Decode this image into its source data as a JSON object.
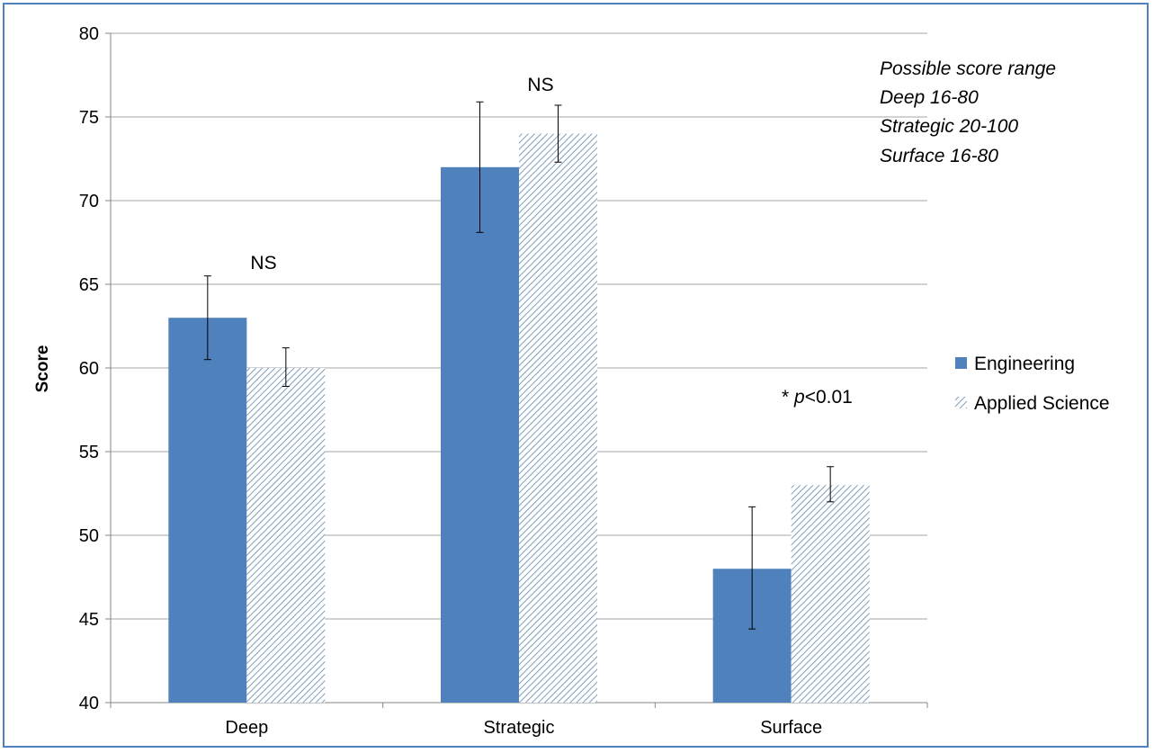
{
  "chart_data": {
    "type": "bar",
    "categories": [
      "Deep",
      "Strategic",
      "Surface"
    ],
    "series": [
      {
        "name": "Engineering",
        "values": [
          63,
          72,
          48
        ],
        "error_low": [
          60.5,
          68.1,
          44.4
        ],
        "error_high": [
          65.5,
          75.9,
          51.7
        ]
      },
      {
        "name": "Applied Science",
        "values": [
          60,
          74,
          53
        ],
        "error_low": [
          58.9,
          72.3,
          52.0
        ],
        "error_high": [
          61.2,
          75.7,
          54.1
        ]
      }
    ],
    "ylabel": "Score",
    "xlabel": "",
    "ylim": [
      40,
      80
    ],
    "yticks": [
      40,
      45,
      50,
      55,
      60,
      65,
      70,
      75,
      80
    ],
    "grid": true,
    "legend": "right",
    "colors": {
      "engineering": "#4f81bd",
      "applied_science_hatch": "#7f9ebb",
      "grid": "#a6a6a6"
    },
    "annotations": {
      "deep": "NS",
      "strategic": "NS",
      "surface_star": "* ",
      "surface_p": "p",
      "surface_rest": "<0.01"
    },
    "notes": [
      "Possible score range",
      "Deep 16-80",
      "Strategic 20-100",
      "Surface 16-80"
    ]
  }
}
